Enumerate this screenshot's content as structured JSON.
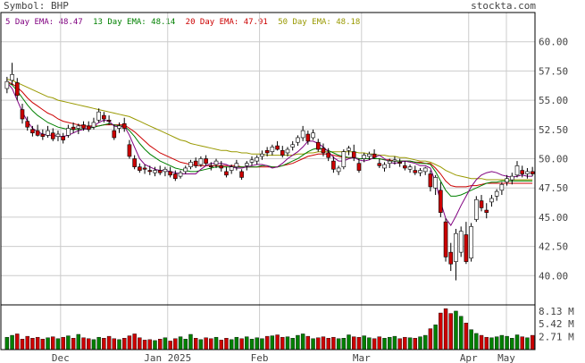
{
  "header": {
    "symbol_label": "Symbol: BHP",
    "site": "stockta.com"
  },
  "legend": {
    "ema5": "5 Day EMA: 48.47",
    "ema13": "13 Day EMA: 48.14",
    "ema20": "20 Day EMA: 47.91",
    "ema50": "50 Day EMA: 48.18"
  },
  "colors": {
    "up": "#008000",
    "down": "#cc0000",
    "ema5": "#800080",
    "ema13": "#008000",
    "ema20": "#cc0000",
    "ema50": "#999900",
    "grid": "#cccccc"
  },
  "chart_data": [
    {
      "type": "candlestick",
      "title": "",
      "ylim": [
        37.5,
        62.5
      ],
      "y_ticks": [
        "60.00",
        "57.50",
        "55.00",
        "52.50",
        "50.00",
        "47.50",
        "45.00",
        "42.50",
        "40.00"
      ],
      "x_ticks": [
        "Dec",
        "Jan 2025",
        "Feb",
        "Mar",
        "Apr",
        "May"
      ],
      "grid": true,
      "legend_position": "top-left",
      "series": [
        {
          "name": "5 Day EMA: 48.47",
          "values": [
            56.5,
            56.0,
            55.0,
            54.0,
            53.2,
            52.6,
            52.3,
            52.1,
            52.0,
            52.0,
            51.9,
            51.9,
            52.0,
            52.2,
            52.4,
            52.5,
            52.6,
            52.8,
            53.1,
            53.3,
            53.2,
            52.8,
            52.7,
            52.8,
            52.0,
            51.0,
            50.0,
            49.5,
            49.3,
            49.1,
            49.0,
            49.0,
            48.9,
            48.8,
            48.7,
            48.7,
            48.7,
            48.7,
            49.1,
            49.4,
            49.6,
            49.6,
            49.6,
            49.5,
            49.3,
            49.2,
            49.2,
            49.3,
            49.4,
            49.5,
            49.5,
            49.4,
            49.2,
            49.3,
            49.6,
            50.0,
            50.3,
            50.6,
            51.0,
            51.5,
            51.5,
            51.3,
            51.0,
            50.6,
            50.1,
            49.8,
            49.8,
            50.0,
            50.1,
            49.9,
            49.8,
            49.9,
            50.1,
            50.3,
            50.0,
            49.7,
            49.6,
            49.7,
            49.8,
            49.7,
            49.6,
            49.4,
            49.4,
            49.2,
            48.0,
            46.3,
            44.9,
            44.3,
            45.1,
            46.0,
            46.8,
            47.6,
            48.2,
            48.6,
            48.8,
            48.9,
            48.8,
            48.6,
            48.5,
            48.4,
            48.5,
            48.6,
            48.5,
            48.5
          ]
        },
        {
          "name": "13 Day EMA: 48.14",
          "values": [
            56.5,
            56.3,
            55.8,
            55.2,
            54.6,
            54.1,
            53.7,
            53.4,
            53.1,
            52.9,
            52.7,
            52.6,
            52.5,
            52.5,
            52.5,
            52.5,
            52.6,
            52.7,
            52.8,
            52.9,
            53.0,
            52.9,
            52.8,
            52.8,
            52.4,
            51.9,
            51.3,
            50.8,
            50.4,
            50.1,
            49.8,
            49.6,
            49.4,
            49.2,
            49.1,
            49.0,
            48.9,
            48.9,
            49.0,
            49.1,
            49.2,
            49.3,
            49.3,
            49.3,
            49.3,
            49.3,
            49.3,
            49.3,
            49.3,
            49.3,
            49.4,
            49.4,
            49.3,
            49.3,
            49.4,
            49.6,
            49.8,
            50.0,
            50.3,
            50.6,
            50.8,
            50.9,
            50.8,
            50.7,
            50.5,
            50.3,
            50.2,
            50.1,
            50.1,
            50.0,
            50.0,
            50.0,
            50.0,
            50.0,
            49.9,
            49.8,
            49.8,
            49.8,
            49.8,
            49.8,
            49.7,
            49.6,
            49.6,
            49.5,
            48.9,
            48.1,
            47.3,
            46.8,
            46.8,
            46.9,
            47.1,
            47.3,
            47.5,
            47.7,
            47.9,
            48.0,
            48.0,
            48.1,
            48.1,
            48.1,
            48.1,
            48.1,
            48.1,
            48.1
          ]
        },
        {
          "name": "20 Day EMA: 47.91",
          "values": [
            56.6,
            56.4,
            56.1,
            55.7,
            55.2,
            54.8,
            54.5,
            54.2,
            53.9,
            53.7,
            53.4,
            53.2,
            53.1,
            53.0,
            52.9,
            52.8,
            52.8,
            52.8,
            52.8,
            52.9,
            52.9,
            52.9,
            52.9,
            52.9,
            52.6,
            52.3,
            51.9,
            51.5,
            51.1,
            50.8,
            50.5,
            50.3,
            50.1,
            49.9,
            49.7,
            49.6,
            49.5,
            49.4,
            49.4,
            49.4,
            49.4,
            49.4,
            49.4,
            49.4,
            49.4,
            49.4,
            49.3,
            49.3,
            49.3,
            49.3,
            49.3,
            49.3,
            49.3,
            49.3,
            49.4,
            49.5,
            49.6,
            49.8,
            50.0,
            50.2,
            50.3,
            50.4,
            50.4,
            50.4,
            50.3,
            50.2,
            50.1,
            50.1,
            50.1,
            50.0,
            50.0,
            50.0,
            50.0,
            50.0,
            49.9,
            49.9,
            49.8,
            49.8,
            49.8,
            49.8,
            49.7,
            49.7,
            49.6,
            49.6,
            49.2,
            48.7,
            48.1,
            47.7,
            47.6,
            47.6,
            47.6,
            47.7,
            47.7,
            47.8,
            47.9,
            47.9,
            47.9,
            47.9,
            47.9,
            47.9,
            47.9,
            47.9,
            47.9,
            47.9
          ]
        },
        {
          "name": "50 Day EMA: 48.18",
          "values": [
            56.8,
            56.7,
            56.5,
            56.3,
            56.1,
            55.9,
            55.7,
            55.5,
            55.3,
            55.2,
            55.0,
            54.9,
            54.8,
            54.7,
            54.6,
            54.5,
            54.4,
            54.3,
            54.2,
            54.1,
            54.0,
            53.9,
            53.8,
            53.7,
            53.6,
            53.4,
            53.2,
            53.0,
            52.8,
            52.6,
            52.4,
            52.2,
            52.0,
            51.8,
            51.6,
            51.5,
            51.3,
            51.2,
            51.1,
            51.0,
            50.9,
            50.8,
            50.7,
            50.7,
            50.6,
            50.6,
            50.5,
            50.5,
            50.4,
            50.4,
            50.4,
            50.3,
            50.3,
            50.3,
            50.3,
            50.3,
            50.3,
            50.4,
            50.4,
            50.5,
            50.5,
            50.6,
            50.6,
            50.6,
            50.6,
            50.6,
            50.6,
            50.6,
            50.6,
            50.5,
            50.5,
            50.4,
            50.4,
            50.3,
            50.3,
            50.2,
            50.2,
            50.1,
            50.1,
            50.0,
            49.9,
            49.8,
            49.8,
            49.7,
            49.5,
            49.3,
            49.0,
            48.8,
            48.6,
            48.5,
            48.4,
            48.3,
            48.3,
            48.3,
            48.2,
            48.2,
            48.2,
            48.2,
            48.2,
            48.2,
            48.2,
            48.2,
            48.2,
            48.2
          ]
        }
      ],
      "candles": [
        [
          56.0,
          57.0,
          55.6,
          56.6
        ],
        [
          56.7,
          58.2,
          56.3,
          57.2
        ],
        [
          56.5,
          56.9,
          55.0,
          55.4
        ],
        [
          54.2,
          54.7,
          53.0,
          53.4
        ],
        [
          53.2,
          53.6,
          52.4,
          52.7
        ],
        [
          52.5,
          52.8,
          51.9,
          52.2
        ],
        [
          52.4,
          52.9,
          51.9,
          52.0
        ],
        [
          52.1,
          52.5,
          51.6,
          51.9
        ],
        [
          52.0,
          52.8,
          51.8,
          52.4
        ],
        [
          52.2,
          52.6,
          51.5,
          51.7
        ],
        [
          51.9,
          52.4,
          51.5,
          52.1
        ],
        [
          51.9,
          52.2,
          51.3,
          51.6
        ],
        [
          52.0,
          52.9,
          51.8,
          52.6
        ],
        [
          52.7,
          53.1,
          52.2,
          52.5
        ],
        [
          52.6,
          53.0,
          52.1,
          52.8
        ],
        [
          52.9,
          53.2,
          52.4,
          52.6
        ],
        [
          52.8,
          53.2,
          52.3,
          52.5
        ],
        [
          52.7,
          53.5,
          52.5,
          53.1
        ],
        [
          53.3,
          54.3,
          53.1,
          54.0
        ],
        [
          53.7,
          54.0,
          53.1,
          53.4
        ],
        [
          53.3,
          53.7,
          52.9,
          53.2
        ],
        [
          52.4,
          52.9,
          51.6,
          51.8
        ],
        [
          52.6,
          53.1,
          52.2,
          52.8
        ],
        [
          53.0,
          53.5,
          52.3,
          52.6
        ],
        [
          51.2,
          51.6,
          50.0,
          50.2
        ],
        [
          50.0,
          50.3,
          49.1,
          49.3
        ],
        [
          49.3,
          49.6,
          48.8,
          49.0
        ],
        [
          49.2,
          49.5,
          48.7,
          49.1
        ],
        [
          49.0,
          49.4,
          48.6,
          48.9
        ],
        [
          48.8,
          49.3,
          48.5,
          49.0
        ],
        [
          49.0,
          49.4,
          48.6,
          48.8
        ],
        [
          48.9,
          49.3,
          48.5,
          49.1
        ],
        [
          48.9,
          49.3,
          48.4,
          48.6
        ],
        [
          48.7,
          49.0,
          48.1,
          48.3
        ],
        [
          48.5,
          49.0,
          48.3,
          48.8
        ],
        [
          48.9,
          49.4,
          48.7,
          49.2
        ],
        [
          49.3,
          49.9,
          49.1,
          49.7
        ],
        [
          49.8,
          50.1,
          49.2,
          49.4
        ],
        [
          49.5,
          50.2,
          49.3,
          50.0
        ],
        [
          50.0,
          50.3,
          49.4,
          49.6
        ],
        [
          49.4,
          49.7,
          49.0,
          49.3
        ],
        [
          49.5,
          50.0,
          49.2,
          49.8
        ],
        [
          49.4,
          49.8,
          48.9,
          49.2
        ],
        [
          48.9,
          49.3,
          48.4,
          48.6
        ],
        [
          49.0,
          49.5,
          48.7,
          49.3
        ],
        [
          49.3,
          49.9,
          49.0,
          49.6
        ],
        [
          48.9,
          49.1,
          48.2,
          48.4
        ],
        [
          49.4,
          49.8,
          49.0,
          49.6
        ],
        [
          49.7,
          50.2,
          49.4,
          49.9
        ],
        [
          49.8,
          50.3,
          49.5,
          50.1
        ],
        [
          50.2,
          50.7,
          49.9,
          50.4
        ],
        [
          50.7,
          51.0,
          50.2,
          50.5
        ],
        [
          50.6,
          51.2,
          50.3,
          51.0
        ],
        [
          51.1,
          51.5,
          50.7,
          50.8
        ],
        [
          50.7,
          51.1,
          50.1,
          50.3
        ],
        [
          50.5,
          51.0,
          50.2,
          50.8
        ],
        [
          51.0,
          51.5,
          50.7,
          51.2
        ],
        [
          51.4,
          52.0,
          51.1,
          51.8
        ],
        [
          51.8,
          52.8,
          51.5,
          52.4
        ],
        [
          52.1,
          52.4,
          51.2,
          51.5
        ],
        [
          51.8,
          52.5,
          51.6,
          52.2
        ],
        [
          51.4,
          51.7,
          50.6,
          50.8
        ],
        [
          50.9,
          51.3,
          50.2,
          50.5
        ],
        [
          50.5,
          50.9,
          49.8,
          50.1
        ],
        [
          49.8,
          50.2,
          48.8,
          49.1
        ],
        [
          48.9,
          49.4,
          48.6,
          49.2
        ],
        [
          49.3,
          50.8,
          49.1,
          50.6
        ],
        [
          50.7,
          51.1,
          50.3,
          50.9
        ],
        [
          50.6,
          51.2,
          49.8,
          50.1
        ],
        [
          49.6,
          50.0,
          48.8,
          49.0
        ],
        [
          50.0,
          50.5,
          49.7,
          50.3
        ],
        [
          50.2,
          50.6,
          49.9,
          50.4
        ],
        [
          50.4,
          50.8,
          50.0,
          50.1
        ],
        [
          49.6,
          50.0,
          49.2,
          49.4
        ],
        [
          49.2,
          49.7,
          48.9,
          49.5
        ],
        [
          49.6,
          50.0,
          49.2,
          49.8
        ],
        [
          49.8,
          50.2,
          49.5,
          49.9
        ],
        [
          49.7,
          50.0,
          49.3,
          49.6
        ],
        [
          49.4,
          49.8,
          49.0,
          49.2
        ],
        [
          49.1,
          49.5,
          48.8,
          49.3
        ],
        [
          49.0,
          49.4,
          48.6,
          48.8
        ],
        [
          48.8,
          49.2,
          48.5,
          49.0
        ],
        [
          48.9,
          49.3,
          48.6,
          49.2
        ],
        [
          48.7,
          49.0,
          47.2,
          47.6
        ],
        [
          47.5,
          48.6,
          46.9,
          48.4
        ],
        [
          47.3,
          48.0,
          45.0,
          45.4
        ],
        [
          44.6,
          44.9,
          41.2,
          41.6
        ],
        [
          42.0,
          42.8,
          40.4,
          41.0
        ],
        [
          41.2,
          44.0,
          39.6,
          43.6
        ],
        [
          42.0,
          44.2,
          41.6,
          43.8
        ],
        [
          43.5,
          44.6,
          41.0,
          41.2
        ],
        [
          41.5,
          44.5,
          41.2,
          44.2
        ],
        [
          44.8,
          46.8,
          44.6,
          46.5
        ],
        [
          46.4,
          46.9,
          45.5,
          45.8
        ],
        [
          45.6,
          46.2,
          44.9,
          45.4
        ],
        [
          46.3,
          46.9,
          45.9,
          46.6
        ],
        [
          46.8,
          47.4,
          46.4,
          47.2
        ],
        [
          47.3,
          48.0,
          46.9,
          47.8
        ],
        [
          48.0,
          48.6,
          47.7,
          48.3
        ],
        [
          48.2,
          48.8,
          47.8,
          48.5
        ],
        [
          48.6,
          49.8,
          48.4,
          49.4
        ],
        [
          49.0,
          49.4,
          48.4,
          48.7
        ],
        [
          48.7,
          49.2,
          48.3,
          48.9
        ],
        [
          48.9,
          49.3,
          48.5,
          48.7
        ]
      ]
    },
    {
      "type": "bar",
      "title": "",
      "y_ticks": [
        "8.13 M",
        "5.42 M",
        "2.71 M"
      ],
      "ylim": [
        0,
        9.4
      ],
      "values": [
        2.6,
        3.0,
        3.3,
        2.2,
        2.8,
        2.4,
        2.6,
        2.2,
        2.5,
        2.7,
        2.3,
        2.6,
        2.9,
        2.4,
        3.2,
        2.5,
        2.3,
        2.1,
        2.6,
        2.4,
        2.8,
        2.3,
        2.1,
        2.4,
        2.9,
        3.3,
        2.5,
        2.0,
        2.1,
        1.9,
        2.2,
        2.5,
        1.8,
        2.3,
        2.7,
        2.2,
        3.2,
        2.4,
        2.1,
        2.5,
        2.3,
        2.6,
        2.0,
        2.4,
        2.1,
        2.6,
        2.3,
        2.7,
        2.2,
        2.5,
        2.3,
        2.8,
        2.9,
        3.1,
        2.6,
        2.7,
        2.4,
        3.0,
        3.3,
        2.8,
        2.3,
        2.5,
        2.7,
        2.4,
        2.6,
        2.3,
        2.4,
        3.1,
        2.7,
        2.6,
        2.9,
        2.5,
        2.3,
        2.7,
        2.4,
        2.6,
        2.8,
        2.3,
        2.6,
        2.5,
        2.4,
        2.7,
        3.0,
        4.4,
        5.2,
        7.7,
        8.6,
        7.6,
        8.1,
        7.0,
        5.6,
        4.2,
        3.4,
        3.0,
        2.6,
        2.5,
        2.7,
        3.0,
        2.8,
        2.4,
        3.1,
        2.7,
        2.5,
        3.0
      ]
    }
  ]
}
